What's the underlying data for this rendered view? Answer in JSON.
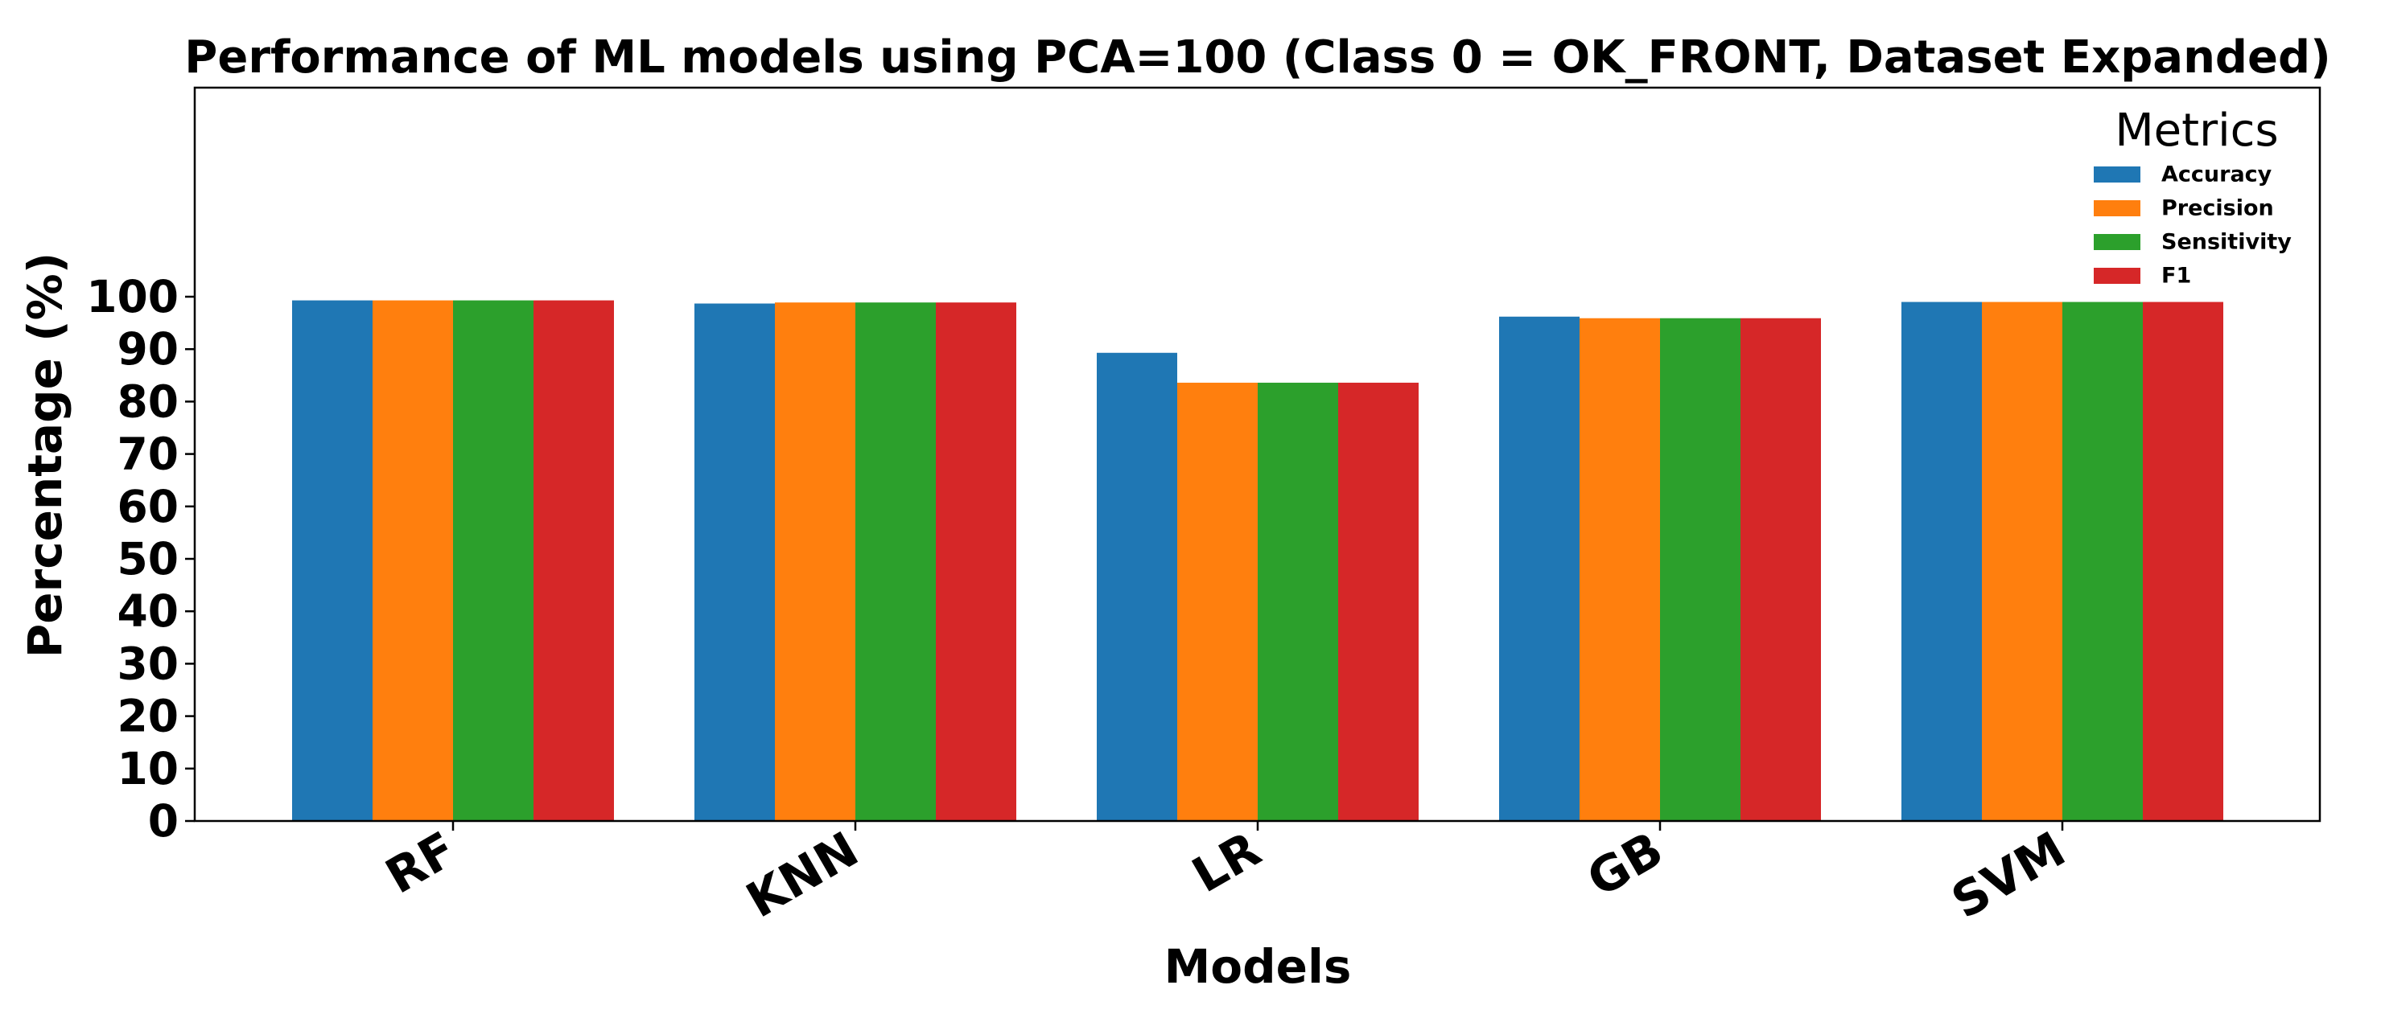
{
  "chart_data": {
    "type": "bar",
    "title": "Performance of ML models using PCA=100 (Class 0 = OK_FRONT, Dataset Expanded)",
    "xlabel": "Models",
    "ylabel": "Percentage (%)",
    "categories": [
      "RF",
      "KNN",
      "LR",
      "GB",
      "SVM"
    ],
    "series": [
      {
        "name": "Accuracy",
        "color": "#1f77b4",
        "values": [
          99.3,
          98.7,
          89.3,
          96.2,
          99.0
        ]
      },
      {
        "name": "Precision",
        "color": "#ff7f0e",
        "values": [
          99.3,
          98.9,
          83.6,
          95.9,
          99.0
        ]
      },
      {
        "name": "Sensitivity",
        "color": "#2ca02c",
        "values": [
          99.3,
          98.9,
          83.6,
          95.9,
          99.0
        ]
      },
      {
        "name": "F1",
        "color": "#d62728",
        "values": [
          99.3,
          98.9,
          83.6,
          95.9,
          99.0
        ]
      }
    ],
    "yticks": [
      0,
      10,
      20,
      30,
      40,
      50,
      60,
      70,
      80,
      90,
      100
    ],
    "ylim": [
      0,
      140
    ],
    "grid": false,
    "legend": {
      "title": "Metrics",
      "placement": "top-right"
    }
  }
}
